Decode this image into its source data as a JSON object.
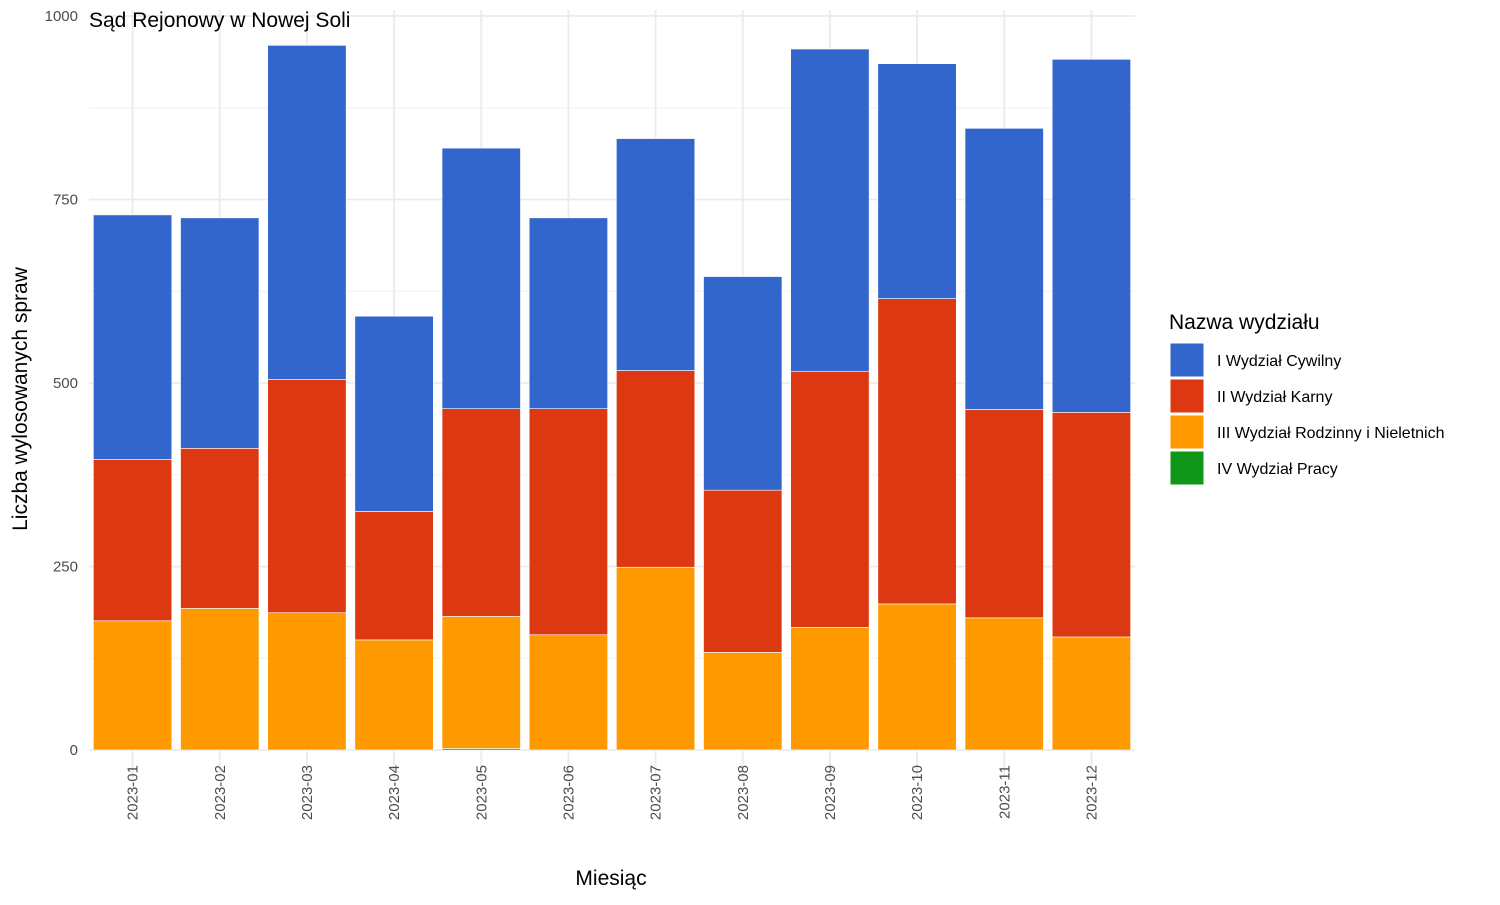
{
  "chart_data": {
    "type": "bar",
    "stacked": true,
    "title": "Sąd Rejonowy w Nowej Soli",
    "xlabel": "Miesiąc",
    "ylabel": "Liczba wylosowanych spraw",
    "ylim": [
      0,
      1000
    ],
    "yticks": [
      0,
      250,
      500,
      750,
      1000
    ],
    "grid": true,
    "legend_title": "Nazwa wydziału",
    "legend_position": "right",
    "categories": [
      "2023-01",
      "2023-02",
      "2023-03",
      "2023-04",
      "2023-05",
      "2023-06",
      "2023-07",
      "2023-08",
      "2023-09",
      "2023-10",
      "2023-11",
      "2023-12"
    ],
    "series": [
      {
        "name": "IV Wydział Pracy",
        "color": "#109618",
        "values": [
          0,
          0,
          0,
          0,
          2,
          0,
          0,
          1,
          1,
          0,
          0,
          0
        ]
      },
      {
        "name": "III Wydział Rodzinny i Nieletnich",
        "color": "#FF9900",
        "values": [
          176,
          193,
          187,
          150,
          180,
          157,
          249,
          132,
          166,
          199,
          180,
          154
        ]
      },
      {
        "name": "II Wydział Karny",
        "color": "#DC3912",
        "values": [
          220,
          218,
          318,
          175,
          283,
          308,
          268,
          221,
          349,
          416,
          284,
          306
        ]
      },
      {
        "name": "I Wydział Cywilny",
        "color": "#3366CC",
        "values": [
          333,
          314,
          455,
          266,
          355,
          260,
          316,
          291,
          439,
          320,
          383,
          481
        ]
      }
    ],
    "legend_order": [
      "I Wydział Cywilny",
      "II Wydział Karny",
      "III Wydział Rodzinny i Nieletnich",
      "IV Wydział Pracy"
    ]
  }
}
